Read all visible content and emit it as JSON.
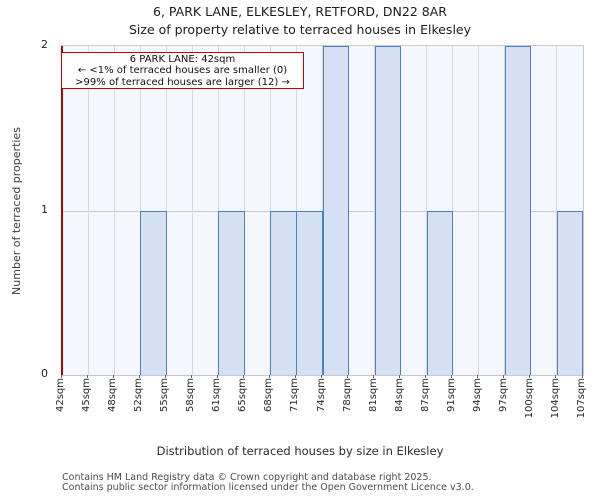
{
  "page": {
    "title": "6, PARK LANE, ELKESLEY, RETFORD, DN22 8AR",
    "subtitle": "Size of property relative to terraced houses in Elkesley"
  },
  "chart_data": {
    "type": "bar",
    "title": "6, PARK LANE, ELKESLEY, RETFORD, DN22 8AR",
    "subtitle": "Size of property relative to terraced houses in Elkesley",
    "xlabel": "Distribution of terraced houses by size in Elkesley",
    "ylabel": "Number of terraced properties",
    "x_tick_labels": [
      "42sqm",
      "45sqm",
      "48sqm",
      "52sqm",
      "55sqm",
      "58sqm",
      "61sqm",
      "65sqm",
      "68sqm",
      "71sqm",
      "74sqm",
      "78sqm",
      "81sqm",
      "84sqm",
      "87sqm",
      "91sqm",
      "94sqm",
      "97sqm",
      "100sqm",
      "104sqm",
      "107sqm"
    ],
    "bin_edges_sqm": [
      42,
      45,
      48,
      52,
      55,
      58,
      61,
      65,
      68,
      71,
      74,
      78,
      81,
      84,
      87,
      91,
      94,
      97,
      100,
      104,
      107
    ],
    "bin_counts": [
      0,
      0,
      0,
      1,
      0,
      0,
      1,
      0,
      1,
      1,
      2,
      0,
      2,
      0,
      1,
      0,
      0,
      2,
      0,
      1
    ],
    "yticks": [
      "0",
      "1",
      "2"
    ],
    "ylim": [
      0,
      2
    ],
    "grid": true,
    "legend_position": "none",
    "marker": {
      "property": "6 PARK LANE",
      "value_sqm": 42
    },
    "annotation_lines": [
      "6 PARK LANE: 42sqm",
      "← <1% of terraced houses are smaller (0)",
      ">99% of terraced houses are larger (12) →"
    ],
    "colors": {
      "bar_fill": "#d4e0f4",
      "bar_border": "#4e80c3",
      "plot_background": "#f4f7fd",
      "gridline": "#d9dade",
      "marker_red": "#b50000",
      "annotation_border": "#cc0000"
    }
  },
  "footer": {
    "line1": "Contains HM Land Registry data © Crown copyright and database right 2025.",
    "line2": "Contains public sector information licensed under the Open Government Licence v3.0."
  }
}
